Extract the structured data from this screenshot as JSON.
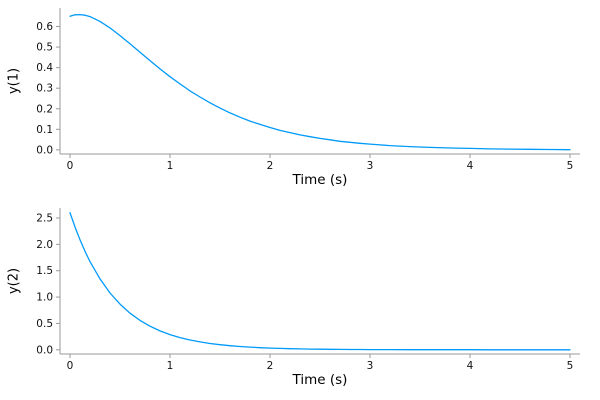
{
  "figure": {
    "background": "#ffffff",
    "text_color": "#111111",
    "axis_color": "#9a9a9a"
  },
  "chart_data": [
    {
      "id": "y1",
      "type": "line",
      "title": "",
      "xlabel": "Time (s)",
      "ylabel": "y(1)",
      "xlim": [
        -0.1,
        5.1
      ],
      "ylim": [
        -0.02,
        0.69
      ],
      "xticks": [
        0,
        1,
        2,
        3,
        4,
        5
      ],
      "xtick_labels": [
        "0",
        "1",
        "2",
        "3",
        "4",
        "5"
      ],
      "yticks": [
        0.0,
        0.1,
        0.2,
        0.3,
        0.4,
        0.5,
        0.6
      ],
      "ytick_labels": [
        "0.0",
        "0.1",
        "0.2",
        "0.3",
        "0.4",
        "0.5",
        "0.6"
      ],
      "grid": false,
      "legend": "none",
      "series": [
        {
          "name": "y(1)",
          "color": "#009af9",
          "x": [
            0,
            0.05,
            0.1,
            0.15,
            0.2,
            0.3,
            0.4,
            0.5,
            0.6,
            0.7,
            0.8,
            0.9,
            1.0,
            1.1,
            1.2,
            1.3,
            1.4,
            1.5,
            1.6,
            1.7,
            1.8,
            1.9,
            2.0,
            2.1,
            2.2,
            2.3,
            2.4,
            2.5,
            2.6,
            2.7,
            2.8,
            2.9,
            3.0,
            3.2,
            3.4,
            3.6,
            3.8,
            4.0,
            4.2,
            4.4,
            4.6,
            4.8,
            5.0
          ],
          "y": [
            0.65,
            0.657,
            0.658,
            0.655,
            0.648,
            0.625,
            0.593,
            0.556,
            0.516,
            0.475,
            0.434,
            0.394,
            0.356,
            0.321,
            0.287,
            0.257,
            0.229,
            0.203,
            0.18,
            0.159,
            0.14,
            0.124,
            0.109,
            0.095,
            0.084,
            0.073,
            0.064,
            0.056,
            0.049,
            0.042,
            0.037,
            0.032,
            0.028,
            0.021,
            0.016,
            0.012,
            0.009,
            0.007,
            0.005,
            0.004,
            0.003,
            0.002,
            0.001
          ]
        }
      ]
    },
    {
      "id": "y2",
      "type": "line",
      "title": "",
      "xlabel": "Time (s)",
      "ylabel": "y(2)",
      "xlim": [
        -0.1,
        5.1
      ],
      "ylim": [
        -0.08,
        2.69
      ],
      "xticks": [
        0,
        1,
        2,
        3,
        4,
        5
      ],
      "xtick_labels": [
        "0",
        "1",
        "2",
        "3",
        "4",
        "5"
      ],
      "yticks": [
        0.0,
        0.5,
        1.0,
        1.5,
        2.0,
        2.5
      ],
      "ytick_labels": [
        "0.0",
        "0.5",
        "1.0",
        "1.5",
        "2.0",
        "2.5"
      ],
      "grid": false,
      "legend": "none",
      "series": [
        {
          "name": "y(2)",
          "color": "#009af9",
          "x": [
            0,
            0.05,
            0.1,
            0.15,
            0.2,
            0.3,
            0.4,
            0.5,
            0.6,
            0.7,
            0.8,
            0.9,
            1.0,
            1.1,
            1.2,
            1.3,
            1.4,
            1.5,
            1.6,
            1.7,
            1.8,
            1.9,
            2.0,
            2.1,
            2.2,
            2.3,
            2.4,
            2.5,
            2.6,
            2.7,
            2.8,
            2.9,
            3.0,
            3.2,
            3.4,
            3.6,
            3.8,
            4.0,
            4.2,
            4.4,
            4.6,
            4.8,
            5.0
          ],
          "y": [
            2.6,
            2.329,
            2.087,
            1.869,
            1.674,
            1.344,
            1.078,
            0.866,
            0.694,
            0.557,
            0.447,
            0.359,
            0.288,
            0.231,
            0.185,
            0.149,
            0.12,
            0.096,
            0.077,
            0.062,
            0.05,
            0.04,
            0.032,
            0.026,
            0.021,
            0.017,
            0.013,
            0.011,
            0.009,
            0.007,
            0.006,
            0.005,
            0.004,
            0.003,
            0.002,
            0.002,
            0.001,
            0.001,
            0.0,
            0.0,
            0.0,
            0.0,
            0.0
          ]
        }
      ]
    }
  ]
}
